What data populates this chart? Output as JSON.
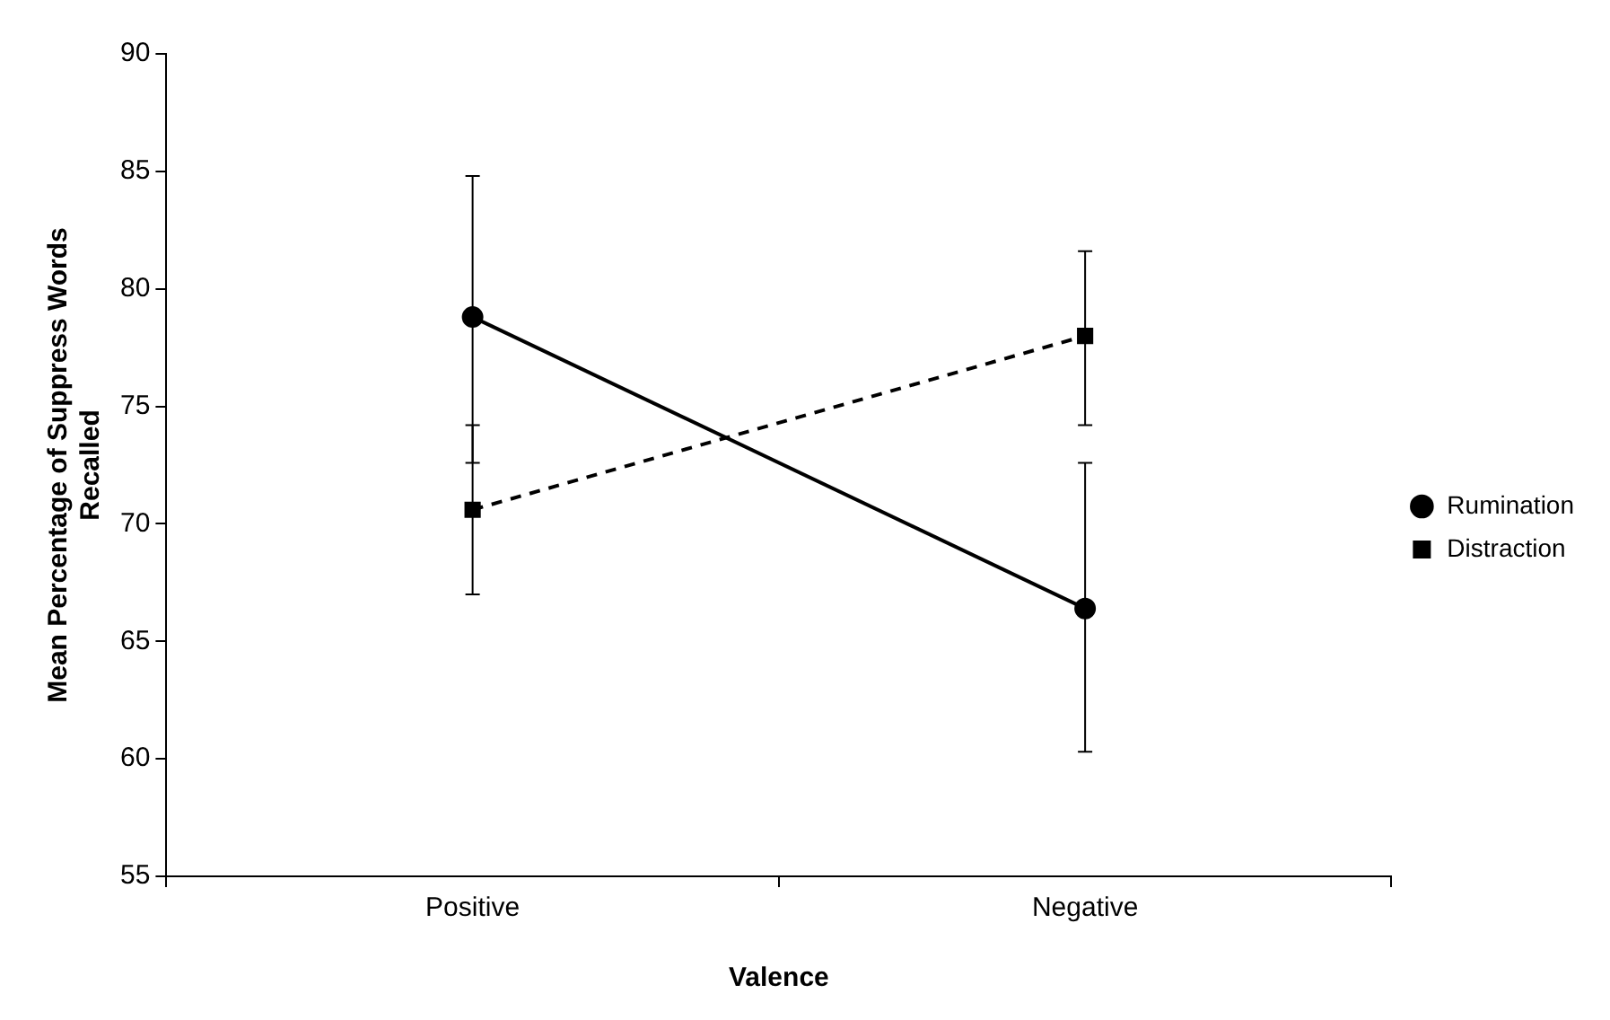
{
  "chart_data": {
    "type": "line",
    "xlabel": "Valence",
    "ylabel": "Mean Percentage of Suppress Words Recalled",
    "categories": [
      "Positive",
      "Negative"
    ],
    "series": [
      {
        "name": "Rumination",
        "color": "#000000",
        "values": [
          78.8,
          66.4
        ],
        "errors": [
          [
            72.6,
            84.8
          ],
          [
            60.3,
            72.6
          ]
        ],
        "marker": "circle",
        "line_style": "solid"
      },
      {
        "name": "Distraction",
        "color": "#000000",
        "values": [
          70.6,
          78.0
        ],
        "errors": [
          [
            67.0,
            74.2
          ],
          [
            74.2,
            81.6
          ]
        ],
        "marker": "square",
        "line_style": "dashed"
      }
    ],
    "ylim": [
      55,
      90
    ],
    "yticks": [
      55,
      60,
      65,
      70,
      75,
      80,
      85,
      90
    ],
    "grid": false,
    "legend": "right"
  }
}
